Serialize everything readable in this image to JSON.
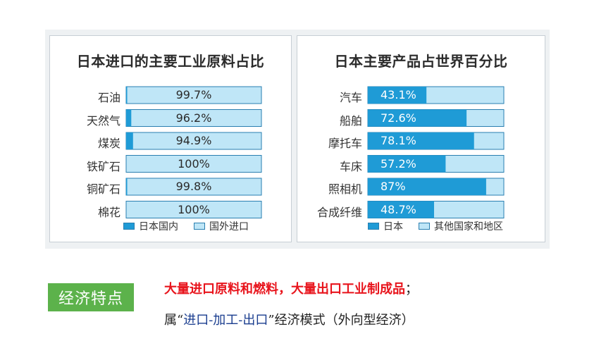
{
  "chart_data": [
    {
      "type": "bar",
      "title": "日本进口的主要工业原料占比",
      "categories": [
        "石油",
        "天然气",
        "煤炭",
        "铁矿石",
        "铜矿石",
        "棉花"
      ],
      "series": [
        {
          "name": "日本国内",
          "values": [
            0.3,
            3.8,
            5.1,
            0,
            0.2,
            0
          ]
        },
        {
          "name": "国外进口",
          "values": [
            99.7,
            96.2,
            94.9,
            100,
            99.8,
            100
          ]
        }
      ],
      "labels": [
        "99.7%",
        "96.2%",
        "94.9%",
        "100%",
        "99.8%",
        "100%"
      ],
      "ylim": [
        0,
        100
      ],
      "legend": "bottom"
    },
    {
      "type": "bar",
      "title": "日本主要产品占世界百分比",
      "categories": [
        "汽车",
        "船舶",
        "摩托车",
        "车床",
        "照相机",
        "合成纤维"
      ],
      "series": [
        {
          "name": "日本",
          "values": [
            43.1,
            72.6,
            78.1,
            57.2,
            87,
            48.7
          ]
        },
        {
          "name": "其他国家和地区",
          "values": [
            56.9,
            27.4,
            21.9,
            42.8,
            13,
            51.3
          ]
        }
      ],
      "labels": [
        "43.1%",
        "72.6%",
        "78.1%",
        "57.2%",
        "87%",
        "48.7%"
      ],
      "ylim": [
        0,
        100
      ],
      "legend": "bottom"
    }
  ],
  "colors": {
    "dark": "#1f9bd6",
    "light": "#bfe6f7",
    "border": "#2a7fb0"
  },
  "footer": {
    "badge": "经济特点",
    "line1": "大量进口原料和燃料，大量出口工业制成品",
    "line1_end": "；",
    "line2_prefix": "属“",
    "line2_highlight": "进口-加工-出口",
    "line2_suffix": "”经济模式（外向型经济）"
  }
}
